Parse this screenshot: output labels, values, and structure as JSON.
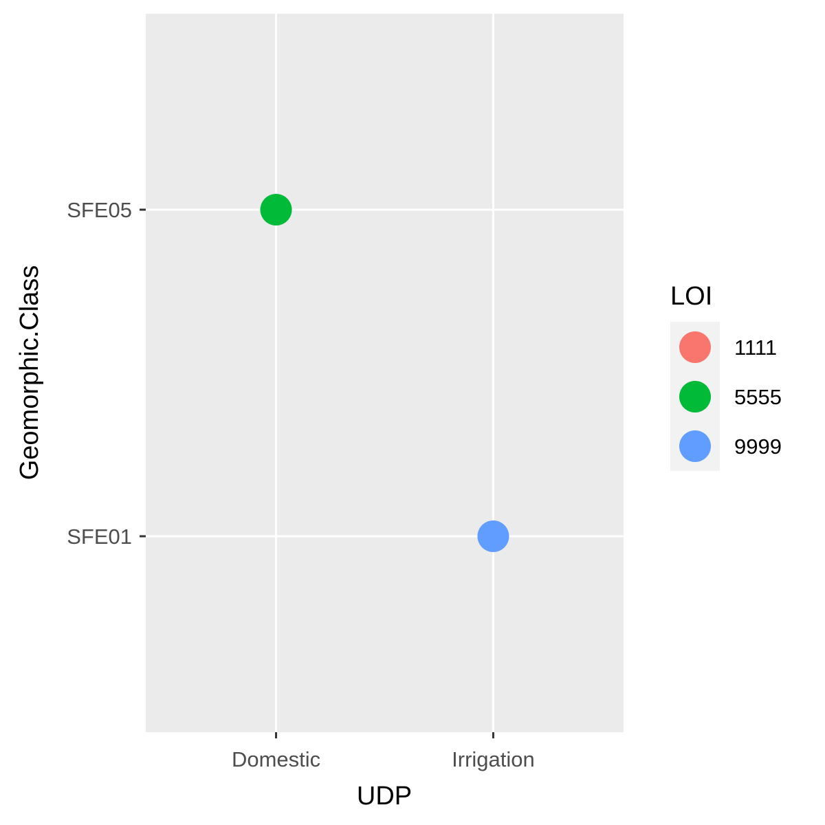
{
  "chart_data": {
    "type": "scatter",
    "xlabel": "UDP",
    "ylabel": "Geomorphic.Class",
    "x_categories": [
      "Domestic",
      "Irrigation"
    ],
    "y_categories": [
      "SFE01",
      "SFE05"
    ],
    "grid": true,
    "legend": {
      "title": "LOI",
      "placement": "right",
      "entries": [
        {
          "label": "1111",
          "color": "#F8766D"
        },
        {
          "label": "5555",
          "color": "#00BA38"
        },
        {
          "label": "9999",
          "color": "#619CFF"
        }
      ]
    },
    "points": [
      {
        "x": "Domestic",
        "y": "SFE05",
        "loi": "5555"
      },
      {
        "x": "Irrigation",
        "y": "SFE01",
        "loi": "9999"
      }
    ]
  },
  "colors": {
    "panel_background": "#EBEBEB",
    "grid_line": "#FFFFFF",
    "tick_mark": "#333333",
    "legend_key_background": "#F2F2F2"
  }
}
